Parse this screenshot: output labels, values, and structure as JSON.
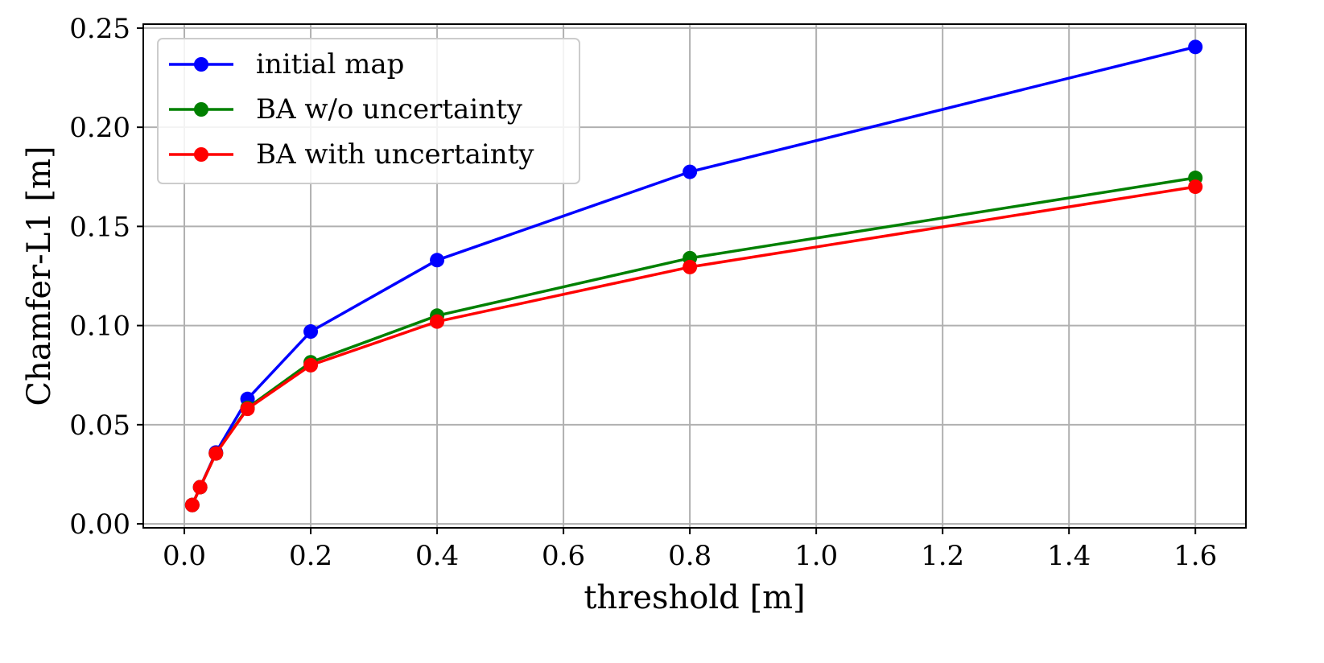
{
  "chart_data": {
    "type": "line",
    "xlabel": "threshold [m]",
    "ylabel": "Chamfer-L1 [m]",
    "xlim": [
      -0.065,
      1.68
    ],
    "ylim": [
      -0.002,
      0.252
    ],
    "xticks": [
      "0.0",
      "0.2",
      "0.4",
      "0.6",
      "0.8",
      "1.0",
      "1.2",
      "1.4",
      "1.6"
    ],
    "yticks": [
      "0.00",
      "0.05",
      "0.10",
      "0.15",
      "0.20",
      "0.25"
    ],
    "grid": true,
    "legend_position": "top-left",
    "x": [
      0.0125,
      0.025,
      0.05,
      0.1,
      0.2,
      0.4,
      0.8,
      1.6
    ],
    "series": [
      {
        "name": "initial map",
        "color": "#0000ff",
        "values": [
          0.0095,
          0.0185,
          0.036,
          0.063,
          0.097,
          0.133,
          0.1775,
          0.2405
        ]
      },
      {
        "name": "BA w/o uncertainty",
        "color": "#008000",
        "values": [
          0.0095,
          0.0185,
          0.0355,
          0.0585,
          0.0815,
          0.105,
          0.134,
          0.1745
        ]
      },
      {
        "name": "BA with uncertainty",
        "color": "#ff0000",
        "values": [
          0.0095,
          0.0185,
          0.0355,
          0.058,
          0.08,
          0.102,
          0.1295,
          0.17
        ]
      }
    ]
  }
}
